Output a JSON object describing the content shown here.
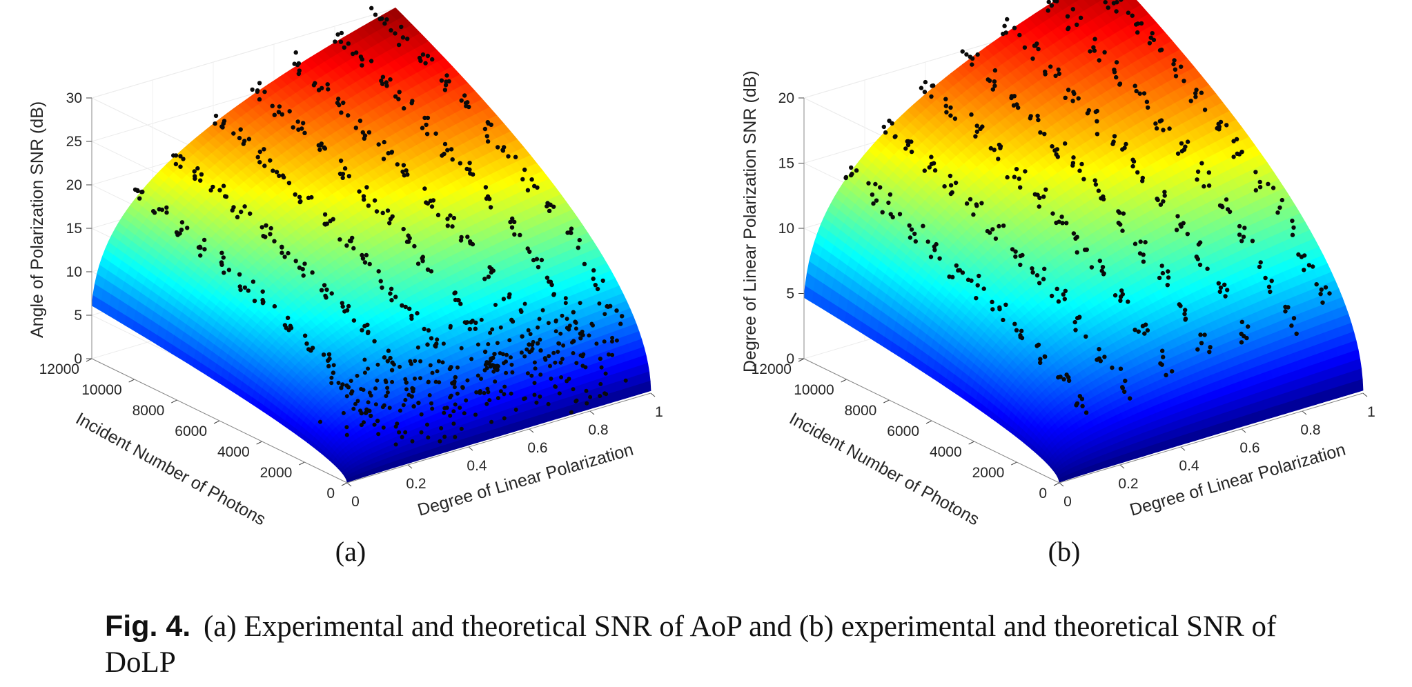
{
  "chart_data": [
    {
      "type": "surface3d",
      "panel_label": "(a)",
      "zlabel": "Angle of Polarization SNR (dB)",
      "ylabel": "Incident Number of Photons",
      "xlabel": "Degree of Linear Polarization",
      "z_ticks": [
        "0",
        "5",
        "10",
        "15",
        "20",
        "25",
        "30"
      ],
      "y_ticks": [
        "12000",
        "10000",
        "8000",
        "6000",
        "4000",
        "2000",
        "0"
      ],
      "x_ticks": [
        "0",
        "0.2",
        "0.4",
        "0.6",
        "0.8",
        "1"
      ],
      "zlim": [
        0,
        30
      ],
      "ylim": [
        0,
        12000
      ],
      "xlim": [
        0,
        1
      ],
      "colormap": "jet",
      "surface_max_db": 30,
      "experimental_points": true
    },
    {
      "type": "surface3d",
      "panel_label": "(b)",
      "zlabel": "Degree of Linear Polarization SNR (dB)",
      "ylabel": "Incident Number of Photons",
      "xlabel": "Degree of Linear Polarization",
      "z_ticks": [
        "0",
        "5",
        "10",
        "15",
        "20"
      ],
      "y_ticks": [
        "12000",
        "10000",
        "8000",
        "6000",
        "4000",
        "2000",
        "0"
      ],
      "x_ticks": [
        "0",
        "0.2",
        "0.4",
        "0.6",
        "0.8",
        "1"
      ],
      "zlim": [
        0,
        20
      ],
      "ylim": [
        0,
        12000
      ],
      "xlim": [
        0,
        1
      ],
      "colormap": "jet",
      "surface_max_db": 23,
      "experimental_points": true
    }
  ],
  "caption": {
    "fig_number": "Fig. 4.",
    "text": "(a) Experimental and theoretical SNR of AoP and (b) experimental and theoretical SNR of DoLP"
  }
}
